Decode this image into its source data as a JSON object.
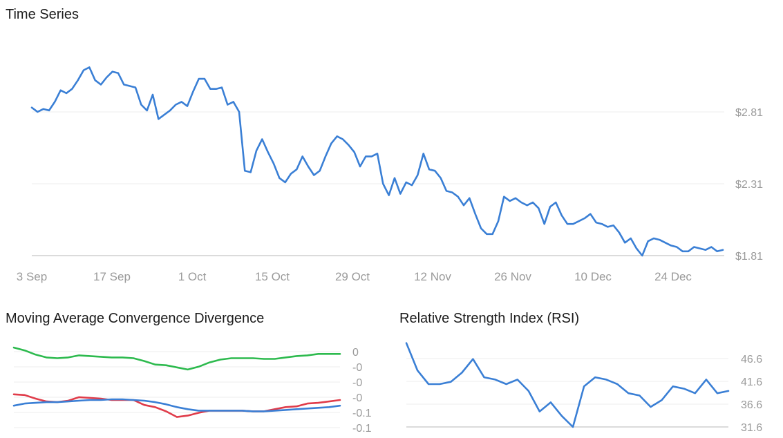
{
  "chart_data": [
    {
      "type": "line",
      "title": "Time Series",
      "ylim": [
        1.81,
        3.3
      ],
      "y_ticks": [
        {
          "value": 1.81,
          "label": "$1.81"
        },
        {
          "value": 2.31,
          "label": "$2.31"
        },
        {
          "value": 2.81,
          "label": "$2.81"
        }
      ],
      "x_ticks": [
        "3 Sep",
        "17 Sep",
        "1 Oct",
        "15 Oct",
        "29 Oct",
        "12 Nov",
        "26 Nov",
        "10 Dec",
        "24 Dec"
      ],
      "grid": true,
      "series": [
        {
          "color": "#3a7fd5",
          "values": [
            2.84,
            2.81,
            2.83,
            2.82,
            2.88,
            2.96,
            2.94,
            2.97,
            3.03,
            3.1,
            3.12,
            3.03,
            3.0,
            3.05,
            3.09,
            3.08,
            3.0,
            2.99,
            2.98,
            2.86,
            2.82,
            2.93,
            2.76,
            2.79,
            2.82,
            2.86,
            2.88,
            2.85,
            2.95,
            3.04,
            3.04,
            2.97,
            2.97,
            2.98,
            2.86,
            2.88,
            2.81,
            2.4,
            2.39,
            2.54,
            2.62,
            2.53,
            2.45,
            2.35,
            2.32,
            2.38,
            2.41,
            2.5,
            2.43,
            2.37,
            2.4,
            2.5,
            2.59,
            2.64,
            2.62,
            2.58,
            2.53,
            2.43,
            2.5,
            2.5,
            2.52,
            2.31,
            2.23,
            2.35,
            2.24,
            2.32,
            2.3,
            2.37,
            2.52,
            2.41,
            2.4,
            2.35,
            2.26,
            2.25,
            2.22,
            2.16,
            2.21,
            2.1,
            2.0,
            1.96,
            1.96,
            2.05,
            2.22,
            2.19,
            2.21,
            2.18,
            2.16,
            2.18,
            2.14,
            2.03,
            2.15,
            2.18,
            2.09,
            2.03,
            2.03,
            2.05,
            2.07,
            2.1,
            2.04,
            2.03,
            2.01,
            2.02,
            1.97,
            1.9,
            1.93,
            1.86,
            1.81,
            1.91,
            1.93,
            1.92,
            1.9,
            1.88,
            1.87,
            1.84,
            1.84,
            1.87,
            1.86,
            1.85,
            1.87,
            1.84,
            1.85
          ]
        }
      ]
    },
    {
      "type": "line",
      "title": "Moving Average Convergence Divergence",
      "ylim": [
        -0.11,
        0.005
      ],
      "y_ticks": [
        {
          "value": 0,
          "label": "0"
        },
        {
          "value": -0.02,
          "label": "-0"
        },
        {
          "value": -0.04,
          "label": "-0"
        },
        {
          "value": -0.06,
          "label": "-0"
        },
        {
          "value": -0.08,
          "label": "-0.1"
        },
        {
          "value": -0.1,
          "label": "-0.1"
        }
      ],
      "grid": true,
      "series": [
        {
          "color": "#2dba4e",
          "values": [
            0.002,
            -0.002,
            -0.008,
            -0.012,
            -0.013,
            -0.012,
            -0.009,
            -0.01,
            -0.011,
            -0.012,
            -0.012,
            -0.013,
            -0.017,
            -0.022,
            -0.023,
            -0.026,
            -0.029,
            -0.025,
            -0.019,
            -0.015,
            -0.013,
            -0.013,
            -0.013,
            -0.014,
            -0.014,
            -0.012,
            -0.01,
            -0.009,
            -0.007,
            -0.007,
            -0.007
          ]
        },
        {
          "color": "#e03c4a",
          "values": [
            -0.064,
            -0.065,
            -0.07,
            -0.074,
            -0.075,
            -0.073,
            -0.068,
            -0.069,
            -0.07,
            -0.072,
            -0.072,
            -0.072,
            -0.079,
            -0.082,
            -0.088,
            -0.096,
            -0.094,
            -0.09,
            -0.087,
            -0.087,
            -0.087,
            -0.087,
            -0.088,
            -0.088,
            -0.085,
            -0.082,
            -0.081,
            -0.077,
            -0.076,
            -0.074,
            -0.072
          ]
        },
        {
          "color": "#3a7fd5",
          "values": [
            -0.08,
            -0.077,
            -0.076,
            -0.075,
            -0.075,
            -0.074,
            -0.073,
            -0.072,
            -0.072,
            -0.071,
            -0.071,
            -0.072,
            -0.073,
            -0.075,
            -0.078,
            -0.082,
            -0.085,
            -0.087,
            -0.087,
            -0.087,
            -0.087,
            -0.087,
            -0.088,
            -0.088,
            -0.087,
            -0.086,
            -0.085,
            -0.084,
            -0.083,
            -0.082,
            -0.08
          ]
        }
      ]
    },
    {
      "type": "line",
      "title": "Relative Strength Index (RSI)",
      "ylim": [
        31.6,
        51.0
      ],
      "y_ticks": [
        {
          "value": 31.6,
          "label": "31.6"
        },
        {
          "value": 36.6,
          "label": "36.6"
        },
        {
          "value": 41.6,
          "label": "41.6"
        },
        {
          "value": 46.6,
          "label": "46.6"
        }
      ],
      "grid": true,
      "series": [
        {
          "color": "#3a7fd5",
          "values": [
            50.0,
            44.0,
            41.0,
            41.0,
            41.5,
            43.5,
            46.5,
            42.5,
            42.0,
            41.0,
            42.0,
            39.5,
            35.0,
            37.0,
            34.0,
            31.6,
            40.5,
            42.5,
            42.0,
            41.0,
            39.0,
            38.5,
            36.0,
            37.5,
            40.5,
            40.0,
            39.0,
            42.0,
            39.0,
            39.5
          ]
        }
      ]
    }
  ]
}
